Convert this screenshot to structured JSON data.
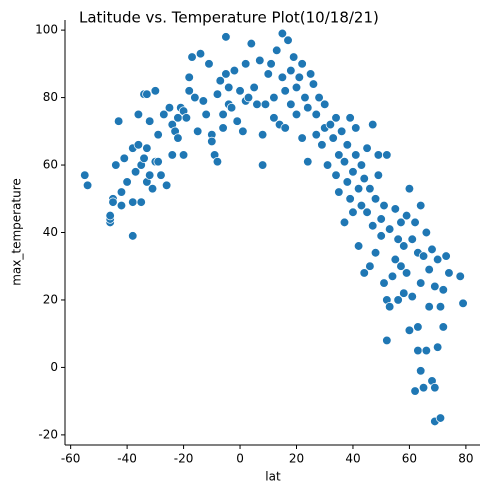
{
  "chart_data": {
    "type": "scatter",
    "title": "Latitude vs. Temperature Plot(10/18/21)",
    "x_label": "lat",
    "y_label": "max_temperature",
    "color": "#1f77b4",
    "xlim": [
      -62,
      85
    ],
    "ylim": [
      -23,
      103
    ],
    "xticks": [
      -60,
      -40,
      -20,
      0,
      20,
      40,
      60,
      80
    ],
    "yticks": [
      -20,
      0,
      20,
      40,
      60,
      80,
      100
    ],
    "x": [
      -55,
      -54,
      -46,
      -46,
      -46,
      -45,
      -45,
      -44,
      -43,
      -42,
      -42,
      -41,
      -40,
      -38,
      -38,
      -38,
      -37,
      -36,
      -36,
      -35,
      -35,
      -34,
      -34,
      -33,
      -33,
      -33,
      -32,
      -32,
      -31,
      -30,
      -30,
      -29,
      -29,
      -28,
      -27,
      -26,
      -25,
      -24,
      -24,
      -23,
      -22,
      -22,
      -21,
      -20,
      -20,
      -19,
      -18,
      -18,
      -17,
      -16,
      -15,
      -14,
      -13,
      -12,
      -11,
      -10,
      -10,
      -9,
      -8,
      -8,
      -7,
      -6,
      -6,
      -5,
      -5,
      -4,
      -4,
      -3,
      -2,
      -1,
      0,
      1,
      2,
      2,
      3,
      4,
      5,
      6,
      7,
      8,
      8,
      9,
      10,
      11,
      12,
      12,
      13,
      14,
      15,
      15,
      16,
      16,
      17,
      18,
      18,
      19,
      20,
      20,
      21,
      22,
      22,
      23,
      24,
      24,
      25,
      26,
      27,
      27,
      28,
      29,
      30,
      30,
      31,
      32,
      33,
      34,
      34,
      35,
      35,
      36,
      37,
      37,
      38,
      38,
      39,
      39,
      40,
      40,
      41,
      41,
      42,
      42,
      43,
      43,
      44,
      44,
      45,
      45,
      46,
      46,
      47,
      47,
      48,
      48,
      49,
      49,
      50,
      50,
      51,
      51,
      52,
      52,
      52,
      53,
      53,
      54,
      55,
      55,
      56,
      56,
      57,
      57,
      58,
      58,
      59,
      59,
      60,
      60,
      61,
      61,
      62,
      62,
      63,
      63,
      63,
      64,
      64,
      64,
      65,
      65,
      66,
      66,
      67,
      67,
      68,
      68,
      69,
      69,
      69,
      70,
      70,
      71,
      71,
      72,
      72,
      73,
      74,
      78,
      79
    ],
    "values": [
      57,
      54,
      43,
      44,
      45,
      50,
      49,
      60,
      73,
      48,
      52,
      62,
      55,
      39,
      49,
      65,
      58,
      75,
      66,
      49,
      60,
      62,
      81,
      55,
      81,
      65,
      57,
      73,
      53,
      61,
      82,
      61,
      69,
      57,
      75,
      54,
      77,
      63,
      72,
      70,
      74,
      68,
      77,
      63,
      76,
      74,
      82,
      86,
      92,
      80,
      70,
      93,
      79,
      75,
      90,
      69,
      67,
      63,
      61,
      81,
      85,
      75,
      71,
      98,
      87,
      78,
      83,
      77,
      88,
      73,
      82,
      70,
      79,
      90,
      80,
      96,
      83,
      78,
      91,
      60,
      69,
      78,
      87,
      90,
      80,
      74,
      94,
      72,
      99,
      86,
      71,
      82,
      97,
      88,
      78,
      92,
      75,
      83,
      86,
      68,
      90,
      80,
      61,
      77,
      87,
      84,
      69,
      75,
      80,
      66,
      71,
      78,
      60,
      72,
      68,
      74,
      57,
      63,
      52,
      70,
      61,
      43,
      55,
      66,
      50,
      74,
      58,
      46,
      63,
      71,
      53,
      36,
      48,
      60,
      28,
      56,
      65,
      46,
      30,
      53,
      42,
      72,
      50,
      34,
      63,
      57,
      39,
      44,
      25,
      48,
      20,
      8,
      63,
      18,
      41,
      27,
      32,
      47,
      20,
      38,
      43,
      30,
      22,
      36,
      45,
      28,
      11,
      53,
      38,
      21,
      -7,
      43,
      12,
      5,
      34,
      -1,
      48,
      25,
      33,
      -6,
      5,
      40,
      18,
      29,
      -4,
      35,
      -6,
      24,
      -16,
      6,
      32,
      -15,
      18,
      12,
      23,
      33,
      28,
      27,
      19
    ]
  }
}
